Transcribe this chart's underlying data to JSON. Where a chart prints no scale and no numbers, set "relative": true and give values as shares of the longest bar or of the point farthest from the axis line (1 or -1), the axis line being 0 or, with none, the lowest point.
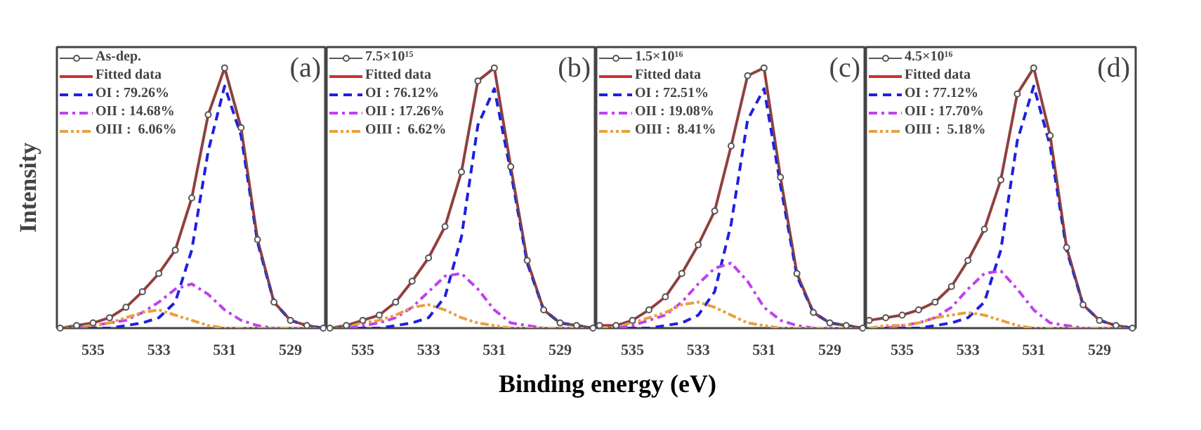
{
  "chart_data": [
    {
      "type": "line",
      "relative": true,
      "ylabel": "Intensity",
      "annotations": [
        "(a)"
      ],
      "legend": "top left",
      "xlim": [
        536.1,
        527.9
      ],
      "xticks": [
        535,
        533,
        531,
        529
      ],
      "x": [
        536,
        535.5,
        535,
        534.5,
        534,
        533.5,
        533,
        532.5,
        532,
        531.5,
        531,
        530.5,
        530,
        529.5,
        529,
        528.5,
        528
      ],
      "series": [
        {
          "name": "As-dep.",
          "color": "#555555",
          "marker": "circle",
          "line_style": "solid",
          "values": [
            0,
            0.01,
            0.02,
            0.04,
            0.08,
            0.14,
            0.21,
            0.3,
            0.5,
            0.82,
            1.0,
            0.77,
            0.34,
            0.1,
            0.03,
            0.01,
            0
          ]
        },
        {
          "name": "Fitted data",
          "color": "#d0312d",
          "line_style": "solid",
          "values": [
            0,
            0.01,
            0.02,
            0.04,
            0.08,
            0.14,
            0.21,
            0.3,
            0.5,
            0.82,
            1.0,
            0.77,
            0.34,
            0.1,
            0.03,
            0.01,
            0
          ]
        },
        {
          "name": "OI : 79.26%",
          "color": "#1f1fe0",
          "line_style": "dashed",
          "values": [
            0,
            0,
            0,
            0,
            0.01,
            0.02,
            0.04,
            0.1,
            0.3,
            0.68,
            0.93,
            0.74,
            0.33,
            0.1,
            0.03,
            0.01,
            0
          ]
        },
        {
          "name": "OII : 14.68%",
          "color": "#c040f0",
          "line_style": "dashdot",
          "values": [
            0,
            0,
            0.01,
            0.02,
            0.03,
            0.06,
            0.1,
            0.15,
            0.17,
            0.13,
            0.07,
            0.03,
            0.01,
            0,
            0,
            0,
            0
          ]
        },
        {
          "name": "OIII :  6.06%",
          "color": "#e8a040",
          "line_style": "dashdotdot",
          "values": [
            0,
            0.01,
            0.01,
            0.02,
            0.04,
            0.06,
            0.07,
            0.05,
            0.03,
            0.01,
            0,
            0,
            0,
            0,
            0,
            0,
            0
          ]
        }
      ]
    },
    {
      "type": "line",
      "relative": true,
      "xlabel": "Binding energy (eV)",
      "annotations": [
        "(b)"
      ],
      "legend": "top left",
      "xlim": [
        536.1,
        527.9
      ],
      "xticks": [
        535,
        533,
        531,
        529
      ],
      "x": [
        536,
        535.5,
        535,
        534.5,
        534,
        533.5,
        533,
        532.5,
        532,
        531.5,
        531,
        530.5,
        530,
        529.5,
        529,
        528.5,
        528
      ],
      "series": [
        {
          "name": "7.5×10¹⁵",
          "color": "#555555",
          "marker": "circle",
          "line_style": "solid",
          "values": [
            0,
            0.01,
            0.03,
            0.05,
            0.1,
            0.18,
            0.27,
            0.39,
            0.6,
            0.95,
            1.0,
            0.62,
            0.26,
            0.07,
            0.02,
            0.01,
            0
          ]
        },
        {
          "name": "Fitted data",
          "color": "#d0312d",
          "line_style": "solid",
          "values": [
            0,
            0.01,
            0.03,
            0.05,
            0.1,
            0.18,
            0.27,
            0.39,
            0.6,
            0.95,
            1.0,
            0.62,
            0.26,
            0.07,
            0.02,
            0.01,
            0
          ]
        },
        {
          "name": "OI : 76.12%",
          "color": "#1f1fe0",
          "line_style": "dashed",
          "values": [
            0,
            0,
            0,
            0,
            0.01,
            0.02,
            0.04,
            0.12,
            0.35,
            0.78,
            0.92,
            0.6,
            0.25,
            0.07,
            0.02,
            0.01,
            0
          ]
        },
        {
          "name": "OII : 17.26%",
          "color": "#c040f0",
          "line_style": "dashdot",
          "values": [
            0,
            0,
            0.01,
            0.02,
            0.04,
            0.08,
            0.14,
            0.2,
            0.21,
            0.15,
            0.07,
            0.02,
            0.01,
            0,
            0,
            0,
            0
          ]
        },
        {
          "name": "OIII :  6.62%",
          "color": "#e8a040",
          "line_style": "dashdotdot",
          "values": [
            0,
            0.01,
            0.02,
            0.03,
            0.05,
            0.08,
            0.09,
            0.07,
            0.04,
            0.02,
            0.01,
            0,
            0,
            0,
            0,
            0,
            0
          ]
        }
      ]
    },
    {
      "type": "line",
      "relative": true,
      "annotations": [
        "(c)"
      ],
      "legend": "top left",
      "xlim": [
        536.1,
        527.9
      ],
      "xticks": [
        535,
        533,
        531,
        529
      ],
      "x": [
        536,
        535.5,
        535,
        534.5,
        534,
        533.5,
        533,
        532.5,
        532,
        531.5,
        531,
        530.5,
        530,
        529.5,
        529,
        528.5,
        528
      ],
      "series": [
        {
          "name": "1.5×10¹⁶",
          "color": "#555555",
          "marker": "circle",
          "line_style": "solid",
          "values": [
            0.01,
            0.01,
            0.03,
            0.07,
            0.12,
            0.21,
            0.32,
            0.45,
            0.7,
            0.97,
            1.0,
            0.58,
            0.21,
            0.06,
            0.02,
            0.01,
            0
          ]
        },
        {
          "name": "Fitted data",
          "color": "#d0312d",
          "line_style": "solid",
          "values": [
            0.01,
            0.01,
            0.03,
            0.07,
            0.12,
            0.21,
            0.32,
            0.45,
            0.7,
            0.97,
            1.0,
            0.58,
            0.21,
            0.06,
            0.02,
            0.01,
            0
          ]
        },
        {
          "name": "OI : 72.51%",
          "color": "#1f1fe0",
          "line_style": "dashed",
          "values": [
            0,
            0,
            0,
            0,
            0.01,
            0.02,
            0.05,
            0.14,
            0.4,
            0.8,
            0.92,
            0.55,
            0.2,
            0.06,
            0.02,
            0.01,
            0
          ]
        },
        {
          "name": "OII : 19.08%",
          "color": "#c040f0",
          "line_style": "dashdot",
          "values": [
            0,
            0,
            0.01,
            0.03,
            0.05,
            0.1,
            0.17,
            0.23,
            0.25,
            0.18,
            0.08,
            0.03,
            0.01,
            0,
            0,
            0,
            0
          ]
        },
        {
          "name": "OIII :  8.41%",
          "color": "#e8a040",
          "line_style": "dashdotdot",
          "values": [
            0,
            0.01,
            0.02,
            0.04,
            0.06,
            0.09,
            0.1,
            0.08,
            0.05,
            0.02,
            0.01,
            0,
            0,
            0,
            0,
            0,
            0
          ]
        }
      ]
    },
    {
      "type": "line",
      "relative": true,
      "annotations": [
        "(d)"
      ],
      "legend": "top left",
      "xlim": [
        536.1,
        527.9
      ],
      "xticks": [
        535,
        533,
        531,
        529
      ],
      "x": [
        536,
        535.5,
        535,
        534.5,
        534,
        533.5,
        533,
        532.5,
        532,
        531.5,
        531,
        530.5,
        530,
        529.5,
        529,
        528.5,
        528
      ],
      "series": [
        {
          "name": "4.5×10¹⁶",
          "color": "#555555",
          "marker": "circle",
          "line_style": "solid",
          "values": [
            0.03,
            0.04,
            0.05,
            0.07,
            0.1,
            0.16,
            0.26,
            0.38,
            0.57,
            0.9,
            1.0,
            0.74,
            0.31,
            0.09,
            0.03,
            0.01,
            0
          ]
        },
        {
          "name": "Fitted data",
          "color": "#d0312d",
          "line_style": "solid",
          "values": [
            0.03,
            0.04,
            0.05,
            0.07,
            0.1,
            0.16,
            0.26,
            0.38,
            0.57,
            0.9,
            1.0,
            0.74,
            0.31,
            0.09,
            0.03,
            0.01,
            0
          ]
        },
        {
          "name": "OI : 77.12%",
          "color": "#1f1fe0",
          "line_style": "dashed",
          "values": [
            0,
            0,
            0,
            0,
            0.01,
            0.02,
            0.04,
            0.1,
            0.3,
            0.72,
            0.93,
            0.7,
            0.3,
            0.09,
            0.03,
            0.01,
            0
          ]
        },
        {
          "name": "OII : 17.70%",
          "color": "#c040f0",
          "line_style": "dashdot",
          "values": [
            0,
            0,
            0.01,
            0.02,
            0.04,
            0.08,
            0.15,
            0.21,
            0.22,
            0.15,
            0.07,
            0.02,
            0.01,
            0,
            0,
            0,
            0
          ]
        },
        {
          "name": "OIII :  5.18%",
          "color": "#e8a040",
          "line_style": "dashdotdot",
          "values": [
            0,
            0.01,
            0.01,
            0.02,
            0.04,
            0.05,
            0.06,
            0.05,
            0.03,
            0.01,
            0,
            0,
            0,
            0,
            0,
            0,
            0
          ]
        }
      ]
    }
  ]
}
